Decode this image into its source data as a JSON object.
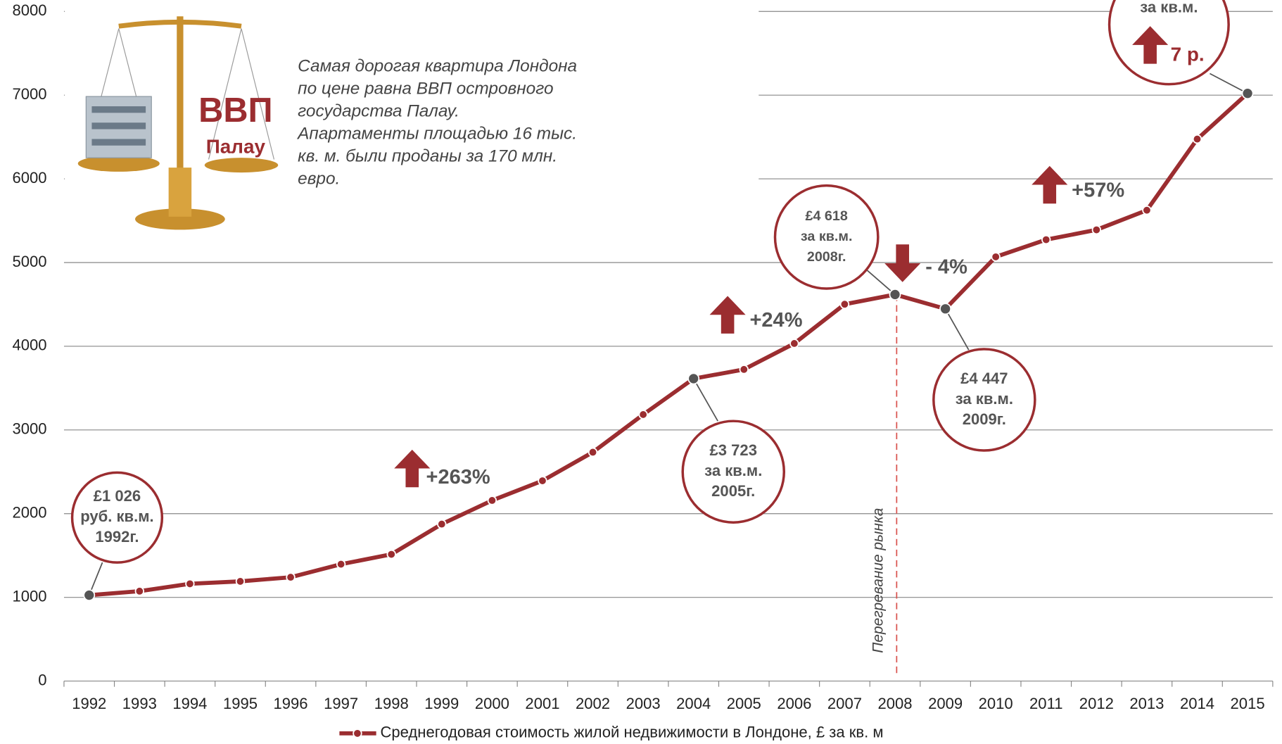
{
  "chart_data": {
    "type": "line",
    "categories": [
      "1992",
      "1993",
      "1994",
      "1995",
      "1996",
      "1997",
      "1998",
      "1999",
      "2000",
      "2001",
      "2002",
      "2003",
      "2004",
      "2005",
      "2006",
      "2007",
      "2008",
      "2009",
      "2010",
      "2011",
      "2012",
      "2013",
      "2014",
      "2015"
    ],
    "series": [
      {
        "name": "Среднегодовая стоимость жилой недвижимости в Лондоне, £ за кв. м",
        "color": "#9b2d30",
        "values": [
          1026,
          1074,
          1162,
          1191,
          1240,
          1396,
          1514,
          1875,
          2158,
          2393,
          2734,
          3184,
          3613,
          3723,
          4033,
          4502,
          4618,
          4447,
          5068,
          5273,
          5391,
          5625,
          6475,
          7021
        ]
      }
    ],
    "ylim": [
      0,
      8000
    ],
    "yticks": [
      0,
      1000,
      2000,
      3000,
      4000,
      5000,
      6000,
      7000,
      8000
    ],
    "grid": true,
    "annotations": [
      {
        "lines": [
          "£1 026",
          "руб. кв.м.",
          "1992г."
        ]
      },
      {
        "lines": [
          "£3 723",
          "за кв.м.",
          "2005г."
        ]
      },
      {
        "lines": [
          "£4 618",
          "за кв.м.",
          "2008г."
        ]
      },
      {
        "lines": [
          "£4 447",
          "за кв.м.",
          "2009г."
        ]
      },
      {
        "lines": [
          "за кв.м."
        ]
      }
    ],
    "changes": [
      "+263%",
      "+24%",
      "- 4%",
      "+57%",
      "7 р."
    ],
    "vline_label": "Перегревание рынка"
  },
  "inset": {
    "badge": [
      "ВВП",
      "Палау"
    ],
    "note_lines": [
      "Самая дорогая квартира Лондона",
      "по цене равна ВВП островного",
      "государства Палау.",
      "Апартаменты площадью 16 тыс.",
      "кв. м. были проданы за 170 млн.",
      "евро."
    ]
  }
}
